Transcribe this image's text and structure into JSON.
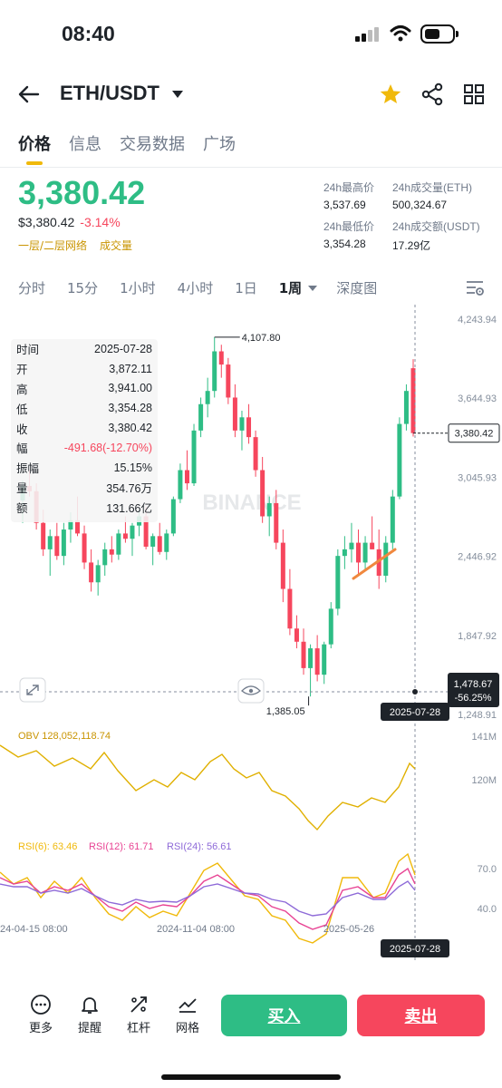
{
  "status": {
    "time": "08:40"
  },
  "header": {
    "pair": "ETH/USDT"
  },
  "tabs": [
    {
      "label": "价格",
      "active": true
    },
    {
      "label": "信息",
      "active": false
    },
    {
      "label": "交易数据",
      "active": false
    },
    {
      "label": "广场",
      "active": false
    }
  ],
  "ticker": {
    "price": "3,380.42",
    "fiat_price": "$3,380.42",
    "change_pct": "-3.14%",
    "link_depth": "一层/二层网络",
    "link_volume": "成交量",
    "high_label": "24h最高价",
    "high": "3,537.69",
    "vol_eth_label": "24h成交量(ETH)",
    "vol_eth": "500,324.67",
    "low_label": "24h最低价",
    "low": "3,354.28",
    "vol_usdt_label": "24h成交额(USDT)",
    "vol_usdt": "17.29亿"
  },
  "intervals": [
    "分时",
    "15分",
    "1小时",
    "4小时",
    "1日",
    "1周",
    "深度图"
  ],
  "selected_interval": "1周",
  "infobox": [
    {
      "k": "时间",
      "v": "2025-07-28"
    },
    {
      "k": "开",
      "v": "3,872.11"
    },
    {
      "k": "高",
      "v": "3,941.00"
    },
    {
      "k": "低",
      "v": "3,354.28"
    },
    {
      "k": "收",
      "v": "3,380.42"
    },
    {
      "k": "幅",
      "v": "-491.68(-12.70%)"
    },
    {
      "k": "振幅",
      "v": "15.15%"
    },
    {
      "k": "量",
      "v": "354.76万"
    },
    {
      "k": "额",
      "v": "131.66亿"
    }
  ],
  "chart_data": {
    "type": "candlestick",
    "watermark": "BINANCE",
    "price_axis": [
      "4,243.94",
      "3,644.93",
      "3,045.93",
      "2,446.92",
      "1,847.92",
      "1,248.91"
    ],
    "price_axis_values": [
      4243.94,
      3644.93,
      3045.93,
      2446.92,
      1847.92,
      1248.91
    ],
    "ylim": [
      1248.91,
      4243.94
    ],
    "last_price_label": "3,380.42",
    "last_price": 3380.42,
    "crosshair_price": "1,478.67",
    "crosshair_pct": "-56.25%",
    "crosshair_date": "2025-07-28",
    "max_label": "4,107.80",
    "max_value": 4107.8,
    "min_label": "1,385.05",
    "min_value": 1385.05,
    "obv_label": "OBV 128,052,118.74",
    "obv_axis": [
      "141M",
      "120M"
    ],
    "obv_axis_values": [
      141,
      120
    ],
    "rsi_labels": [
      {
        "text": "RSI(6): 63.46",
        "color": "#f0b90b"
      },
      {
        "text": "RSI(12): 61.71",
        "color": "#e84393"
      },
      {
        "text": "RSI(24): 56.61",
        "color": "#8e6ad8"
      }
    ],
    "rsi_axis": [
      "70.0",
      "40.0"
    ],
    "rsi_axis_values": [
      70,
      40
    ],
    "x_labels": [
      "24-04-15 08:00",
      "2024-11-04 08:00",
      "2025-05-26"
    ],
    "series": [
      {
        "name": "candles",
        "values": [
          [
            2870,
            3020,
            2700,
            2980
          ],
          [
            2980,
            3100,
            2900,
            2940
          ],
          [
            2940,
            3000,
            2650,
            2700
          ],
          [
            2700,
            2800,
            2450,
            2500
          ],
          [
            2500,
            2650,
            2300,
            2600
          ],
          [
            2600,
            2700,
            2420,
            2450
          ],
          [
            2450,
            2700,
            2380,
            2650
          ],
          [
            2650,
            2780,
            2550,
            2720
          ],
          [
            2720,
            2900,
            2600,
            2620
          ],
          [
            2620,
            2680,
            2350,
            2400
          ],
          [
            2400,
            2500,
            2180,
            2250
          ],
          [
            2250,
            2420,
            2150,
            2380
          ],
          [
            2380,
            2550,
            2300,
            2500
          ],
          [
            2500,
            2600,
            2400,
            2460
          ],
          [
            2460,
            2650,
            2420,
            2620
          ],
          [
            2620,
            2750,
            2550,
            2580
          ],
          [
            2580,
            2700,
            2450,
            2680
          ],
          [
            2680,
            2800,
            2600,
            2750
          ],
          [
            2750,
            2820,
            2500,
            2520
          ],
          [
            2520,
            2620,
            2380,
            2600
          ],
          [
            2600,
            2700,
            2460,
            2480
          ],
          [
            2480,
            2650,
            2420,
            2620
          ],
          [
            2620,
            2900,
            2600,
            2880
          ],
          [
            2880,
            3150,
            2850,
            3100
          ],
          [
            3100,
            3250,
            2950,
            3000
          ],
          [
            3000,
            3450,
            2980,
            3400
          ],
          [
            3400,
            3650,
            3350,
            3600
          ],
          [
            3600,
            3800,
            3500,
            3700
          ],
          [
            3700,
            4107.8,
            3650,
            4000
          ],
          [
            4000,
            4050,
            3800,
            3900
          ],
          [
            3900,
            3950,
            3600,
            3650
          ],
          [
            3650,
            3750,
            3350,
            3400
          ],
          [
            3400,
            3550,
            3250,
            3500
          ],
          [
            3500,
            3600,
            3300,
            3350
          ],
          [
            3350,
            3400,
            3050,
            3100
          ],
          [
            3100,
            3200,
            2700,
            2750
          ],
          [
            2750,
            2900,
            2600,
            2850
          ],
          [
            2850,
            2950,
            2500,
            2550
          ],
          [
            2550,
            2650,
            2100,
            2200
          ],
          [
            2200,
            2350,
            1850,
            1900
          ],
          [
            1900,
            2000,
            1750,
            1800
          ],
          [
            1800,
            1900,
            1550,
            1600
          ],
          [
            1600,
            1780,
            1385.05,
            1750
          ],
          [
            1750,
            1850,
            1500,
            1550
          ],
          [
            1550,
            1800,
            1480,
            1780
          ],
          [
            1780,
            2100,
            1750,
            2050
          ],
          [
            2050,
            2500,
            2000,
            2450
          ],
          [
            2450,
            2600,
            2350,
            2500
          ],
          [
            2500,
            2700,
            2400,
            2550
          ],
          [
            2550,
            2650,
            2300,
            2400
          ],
          [
            2400,
            2600,
            2350,
            2550
          ],
          [
            2550,
            2750,
            2500,
            2500
          ],
          [
            2500,
            2650,
            2200,
            2300
          ],
          [
            2300,
            2600,
            2250,
            2550
          ],
          [
            2550,
            2950,
            2500,
            2900
          ],
          [
            2900,
            3500,
            2880,
            3450
          ],
          [
            3450,
            3750,
            3400,
            3700
          ],
          [
            3872.11,
            3941,
            3354.28,
            3380.42
          ]
        ]
      }
    ]
  },
  "bottom": {
    "more": "更多",
    "alert": "提醒",
    "leverage": "杠杆",
    "grid": "网格",
    "buy": "买入",
    "sell": "卖出"
  }
}
